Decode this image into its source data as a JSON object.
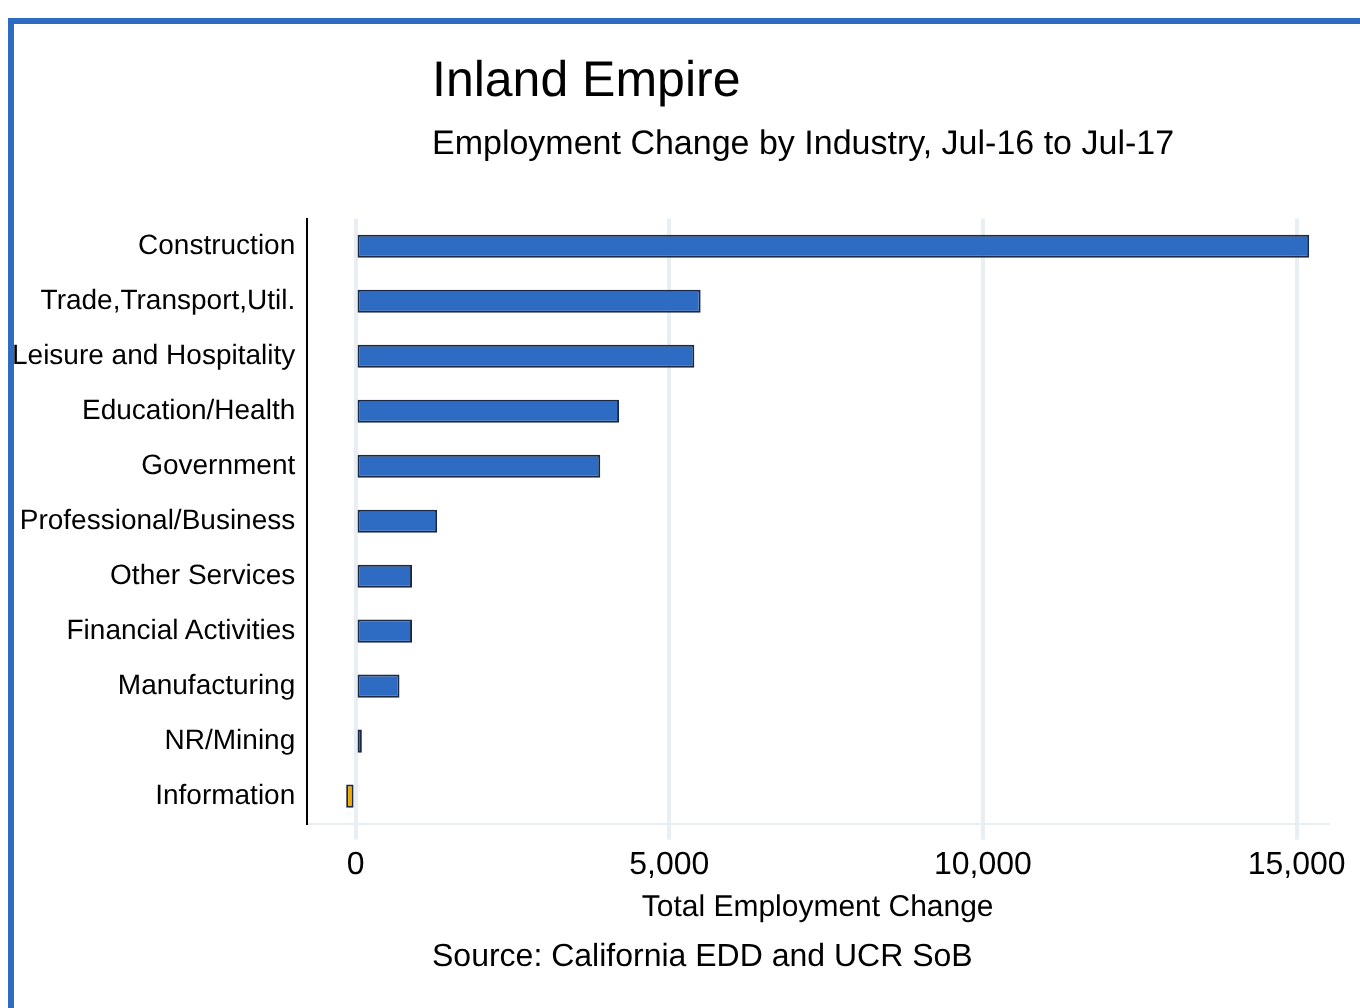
{
  "chart_data": {
    "type": "bar",
    "orientation": "horizontal",
    "title": "Inland Empire",
    "subtitle": "Employment Change by Industry, Jul-16 to Jul-17",
    "xlabel": "Total Employment Change",
    "categories": [
      "Construction",
      "Trade,Transport,Util.",
      "Leisure and Hospitality",
      "Education/Health",
      "Government",
      "Professional/Business",
      "Other Services",
      "Financial Activities",
      "Manufacturing",
      "NR/Mining",
      "Information"
    ],
    "values": [
      15200,
      5500,
      5400,
      4200,
      3900,
      1300,
      900,
      900,
      700,
      100,
      -150
    ],
    "colors": [
      "#2e6bc2",
      "#2e6bc2",
      "#2e6bc2",
      "#2e6bc2",
      "#2e6bc2",
      "#2e6bc2",
      "#2e6bc2",
      "#2e6bc2",
      "#2e6bc2",
      "#2e6bc2",
      "#f0a800"
    ],
    "xlim": [
      -770,
      15500
    ],
    "xticks": [
      {
        "value": 0,
        "label": "0"
      },
      {
        "value": 5000,
        "label": "5,000"
      },
      {
        "value": 10000,
        "label": "10,000"
      },
      {
        "value": 15000,
        "label": "15,000"
      }
    ],
    "grid": "x",
    "legend": false,
    "annotations": [
      "Source: California EDD and UCR SoB"
    ]
  }
}
